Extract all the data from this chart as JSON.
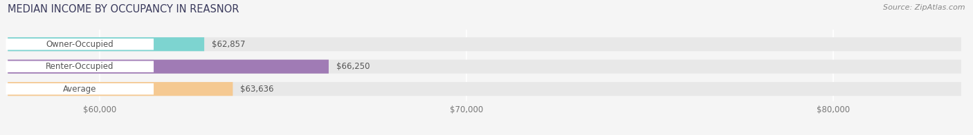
{
  "title": "MEDIAN INCOME BY OCCUPANCY IN REASNOR",
  "source": "Source: ZipAtlas.com",
  "categories": [
    "Owner-Occupied",
    "Renter-Occupied",
    "Average"
  ],
  "values": [
    62857,
    66250,
    63636
  ],
  "labels": [
    "$62,857",
    "$66,250",
    "$63,636"
  ],
  "bar_colors": [
    "#7dd4d0",
    "#a07bb5",
    "#f5c992"
  ],
  "xmin": 57500,
  "xmax": 83500,
  "xticks": [
    60000,
    70000,
    80000
  ],
  "xtick_labels": [
    "$60,000",
    "$70,000",
    "$80,000"
  ],
  "background_color": "#f5f5f5",
  "bar_bg_color": "#e8e8e8",
  "title_fontsize": 10.5,
  "label_fontsize": 8.5,
  "tick_fontsize": 8.5,
  "source_fontsize": 8.0,
  "title_color": "#3a3a5c",
  "label_color": "#555555",
  "tick_color": "#777777",
  "source_color": "#888888"
}
